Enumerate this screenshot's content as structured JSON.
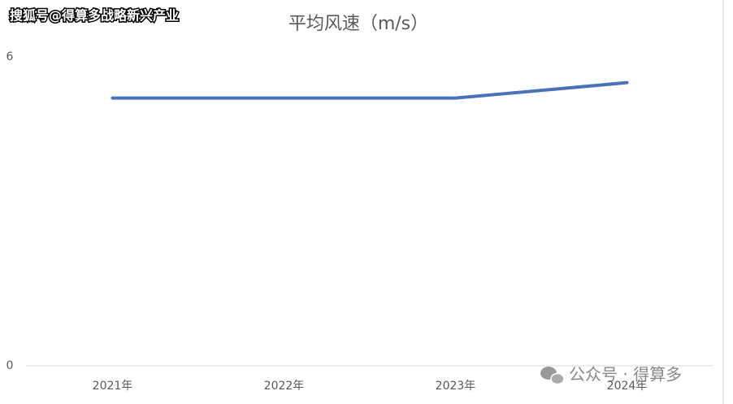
{
  "chart_data": {
    "type": "line",
    "title": "平均风速（m/s）",
    "categories": [
      "2021年",
      "2022年",
      "2023年",
      "2024年"
    ],
    "series": [
      {
        "name": "平均风速",
        "color": "#4a72b8",
        "values": [
          5.2,
          5.2,
          5.2,
          5.5
        ]
      }
    ],
    "ylim": [
      0,
      6
    ],
    "yticks": [
      0,
      6
    ],
    "grid": false
  },
  "watermarks": [
    "搜狐号@得算多战略新兴产业",
    "公众号 · 得算多"
  ]
}
